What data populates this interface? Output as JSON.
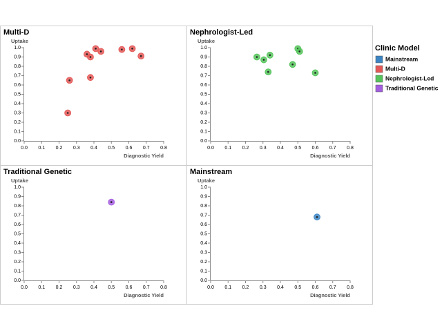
{
  "chart_data": [
    {
      "type": "scatter",
      "title": "Multi-D",
      "x_label": "Diagnostic Yield",
      "y_label": "Uptake",
      "series": [
        {
          "color": "#e45756",
          "x": [
            0.26,
            0.25,
            0.36,
            0.38,
            0.41,
            0.44,
            0.38,
            0.56,
            0.62,
            0.67
          ],
          "values": [
            0.65,
            0.3,
            0.93,
            0.9,
            0.99,
            0.96,
            0.68,
            0.98,
            0.99,
            0.91
          ]
        }
      ],
      "xlim": [
        0,
        0.8
      ],
      "xticks": [
        {
          "value": 0,
          "label": "0.0"
        },
        0.1,
        0.2,
        0.3,
        0.4,
        0.5,
        0.6,
        0.7,
        0.8
      ],
      "ylim": [
        0,
        1
      ],
      "yticks": [
        {
          "value": 0,
          "label": "0.0"
        },
        0.1,
        0.2,
        0.3,
        0.4,
        0.5,
        0.6,
        0.7,
        0.8,
        0.9,
        {
          "value": 1,
          "label": "1.0"
        }
      ]
    },
    {
      "type": "scatter",
      "title": "Nephrologist-Led",
      "x_label": "Diagnostic Yield",
      "y_label": "Uptake",
      "series": [
        {
          "color": "#54c45a",
          "x": [
            0.265,
            0.305,
            0.34,
            0.33,
            0.47,
            0.5,
            0.51,
            0.6
          ],
          "values": [
            0.9,
            0.87,
            0.92,
            0.74,
            0.82,
            0.99,
            0.96,
            0.73
          ]
        }
      ],
      "xlim": [
        0,
        0.8
      ],
      "xticks": [
        {
          "value": 0,
          "label": "0.0"
        },
        0.1,
        0.2,
        0.3,
        0.4,
        0.5,
        0.6,
        0.7,
        0.8
      ],
      "ylim": [
        0,
        1
      ],
      "yticks": [
        {
          "value": 0,
          "label": "0.0"
        },
        0.1,
        0.2,
        0.3,
        0.4,
        0.5,
        0.6,
        0.7,
        0.8,
        0.9,
        {
          "value": 1,
          "label": "1.0"
        }
      ]
    },
    {
      "type": "scatter",
      "title": "Traditional Genetic",
      "x_label": "Diagnostic Yield",
      "y_label": "Uptake",
      "series": [
        {
          "color": "#a45ee0",
          "x": [
            0.5
          ],
          "values": [
            0.84
          ]
        }
      ],
      "xlim": [
        0,
        0.8
      ],
      "xticks": [
        {
          "value": 0,
          "label": "0.0"
        },
        0.1,
        0.2,
        0.3,
        0.4,
        0.5,
        0.6,
        0.7,
        0.8
      ],
      "ylim": [
        0,
        1
      ],
      "yticks": [
        {
          "value": 0,
          "label": "0.0"
        },
        0.1,
        0.2,
        0.3,
        0.4,
        0.5,
        0.6,
        0.7,
        0.8,
        0.9,
        {
          "value": 1,
          "label": "1.0"
        }
      ]
    },
    {
      "type": "scatter",
      "title": "Mainstream",
      "x_label": "Diagnostic Yield",
      "y_label": "Uptake",
      "series": [
        {
          "color": "#3c85c4",
          "x": [
            0.61
          ],
          "values": [
            0.68
          ]
        }
      ],
      "xlim": [
        0,
        0.8
      ],
      "xticks": [
        {
          "value": 0,
          "label": "0.0"
        },
        0.1,
        0.2,
        0.3,
        0.4,
        0.5,
        0.6,
        0.7,
        0.8
      ],
      "ylim": [
        0,
        1
      ],
      "yticks": [
        {
          "value": 0,
          "label": "0.0"
        },
        0.1,
        0.2,
        0.3,
        0.4,
        0.5,
        0.6,
        0.7,
        0.8,
        0.9,
        {
          "value": 1,
          "label": "1.0"
        }
      ]
    }
  ],
  "legend": {
    "title": "Clinic Model",
    "entries": [
      {
        "name": "Mainstream",
        "color": "#3c85c4"
      },
      {
        "name": "Multi-D",
        "color": "#e45756"
      },
      {
        "name": "Nephrologist-Led",
        "color": "#54c45a"
      },
      {
        "name": "Traditional Genetic",
        "color": "#a45ee0"
      }
    ]
  }
}
